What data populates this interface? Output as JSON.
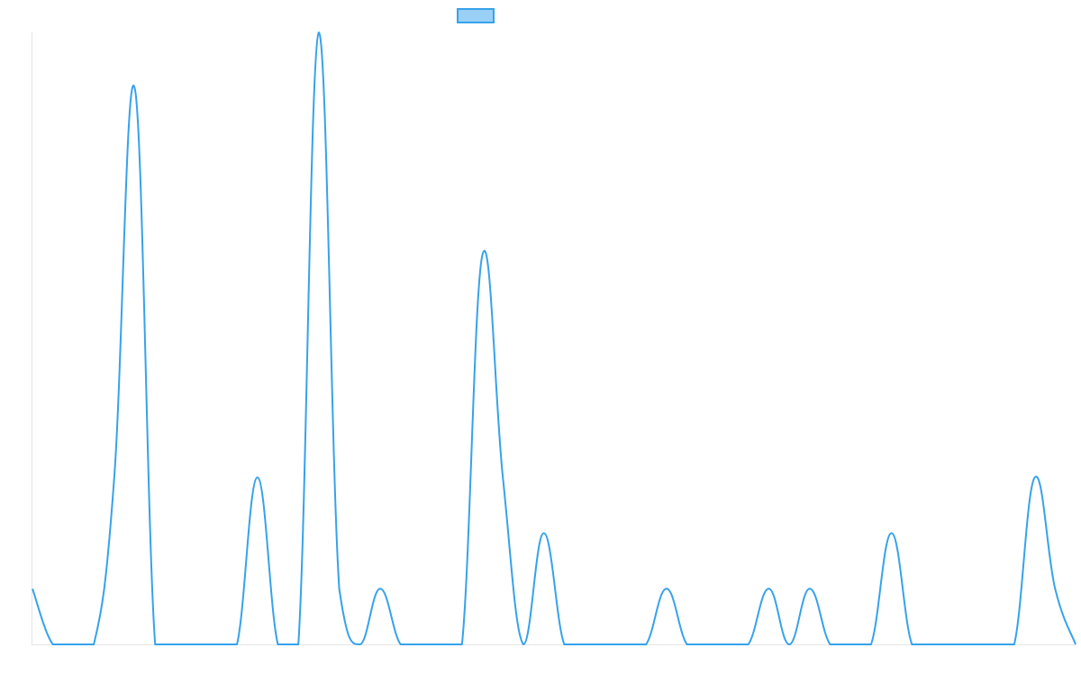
{
  "chart_data": {
    "type": "line",
    "title": "",
    "xlabel": "",
    "ylabel": "",
    "legend_position": "top",
    "grid": false,
    "colors": {
      "line": "#36a2eb",
      "legend_fill": "#9ad0f5",
      "axis": "#e5e5e5"
    },
    "ylim": [
      0,
      11
    ],
    "series": [
      {
        "name": "",
        "values": [
          1,
          0,
          0,
          0,
          3,
          10,
          0,
          0,
          0,
          0,
          0,
          3,
          0,
          0,
          11,
          1,
          0,
          1,
          0,
          0,
          0,
          0,
          7,
          3,
          0,
          2,
          0,
          0,
          0,
          0,
          0,
          1,
          0,
          0,
          0,
          0,
          1,
          0,
          1,
          0,
          0,
          0,
          2,
          0,
          0,
          0,
          0,
          0,
          0,
          3,
          1,
          0
        ]
      }
    ]
  }
}
